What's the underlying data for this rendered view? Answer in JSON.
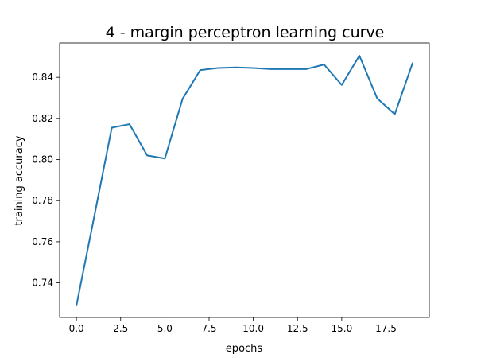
{
  "chart_data": {
    "type": "line",
    "title": "4 - margin perceptron learning curve",
    "xlabel": "epochs",
    "ylabel": "training accuracy",
    "xlim": [
      -0.95,
      19.95
    ],
    "ylim": [
      0.7232,
      0.8567
    ],
    "xticks": [
      0.0,
      2.5,
      5.0,
      7.5,
      10.0,
      12.5,
      15.0,
      17.5
    ],
    "xtick_labels": [
      "0.0",
      "2.5",
      "5.0",
      "7.5",
      "10.0",
      "12.5",
      "15.0",
      "17.5"
    ],
    "yticks": [
      0.74,
      0.76,
      0.78,
      0.8,
      0.82,
      0.84
    ],
    "ytick_labels": [
      "0.74",
      "0.76",
      "0.78",
      "0.80",
      "0.82",
      "0.84"
    ],
    "grid": false,
    "series": [
      {
        "color": "#1f77b4",
        "x": [
          0,
          1,
          2,
          3,
          4,
          5,
          6,
          7,
          8,
          9,
          10,
          11,
          12,
          13,
          14,
          15,
          16,
          17,
          18,
          19
        ],
        "values": [
          0.729,
          0.772,
          0.8155,
          0.8172,
          0.802,
          0.8005,
          0.8295,
          0.8435,
          0.8445,
          0.8448,
          0.8445,
          0.844,
          0.844,
          0.844,
          0.8462,
          0.8363,
          0.8505,
          0.8298,
          0.822,
          0.8468
        ]
      }
    ]
  }
}
